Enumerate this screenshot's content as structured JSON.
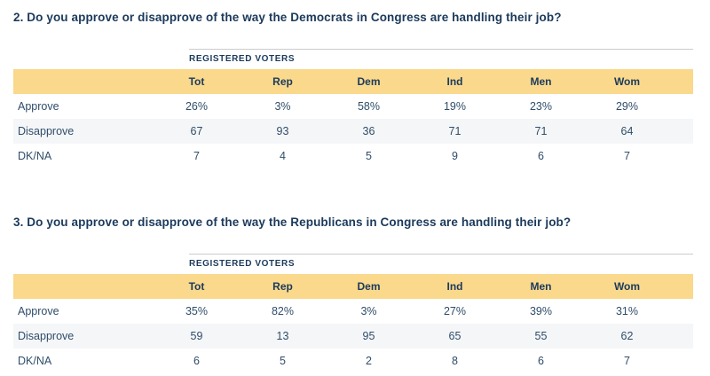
{
  "colors": {
    "header_band": "#fad88c",
    "stripe_row": "#f5f6f8",
    "title_text": "#1b3a5c",
    "body_text": "#2f4d6a",
    "rule_line": "#cbcbcb",
    "background": "#ffffff"
  },
  "questions": [
    {
      "title": "2. Do you approve or disapprove of the way the Democrats in Congress are handling their job?",
      "group_header": "REGISTERED VOTERS",
      "columns": [
        "Tot",
        "Rep",
        "Dem",
        "Ind",
        "Men",
        "Wom"
      ],
      "rows": [
        {
          "label": "Approve",
          "values": [
            "26%",
            "3%",
            "58%",
            "19%",
            "23%",
            "29%"
          ]
        },
        {
          "label": "Disapprove",
          "values": [
            "67",
            "93",
            "36",
            "71",
            "71",
            "64"
          ]
        },
        {
          "label": "DK/NA",
          "values": [
            "7",
            "4",
            "5",
            "9",
            "6",
            "7"
          ]
        }
      ]
    },
    {
      "title": "3. Do you approve or disapprove of the way the Republicans in Congress are handling their job?",
      "group_header": "REGISTERED VOTERS",
      "columns": [
        "Tot",
        "Rep",
        "Dem",
        "Ind",
        "Men",
        "Wom"
      ],
      "rows": [
        {
          "label": "Approve",
          "values": [
            "35%",
            "82%",
            "3%",
            "27%",
            "39%",
            "31%"
          ]
        },
        {
          "label": "Disapprove",
          "values": [
            "59",
            "13",
            "95",
            "65",
            "55",
            "62"
          ]
        },
        {
          "label": "DK/NA",
          "values": [
            "6",
            "5",
            "2",
            "8",
            "6",
            "7"
          ]
        }
      ]
    }
  ],
  "chart_data": [
    {
      "type": "table",
      "title": "2. Do you approve or disapprove of the way the Democrats in Congress are handling their job?",
      "group_header": "REGISTERED VOTERS",
      "columns": [
        "Tot",
        "Rep",
        "Dem",
        "Ind",
        "Men",
        "Wom"
      ],
      "rows": [
        [
          "Approve",
          "26%",
          "3%",
          "58%",
          "19%",
          "23%",
          "29%"
        ],
        [
          "Disapprove",
          "67",
          "93",
          "36",
          "71",
          "71",
          "64"
        ],
        [
          "DK/NA",
          "7",
          "4",
          "5",
          "9",
          "6",
          "7"
        ]
      ]
    },
    {
      "type": "table",
      "title": "3. Do you approve or disapprove of the way the Republicans in Congress are handling their job?",
      "group_header": "REGISTERED VOTERS",
      "columns": [
        "Tot",
        "Rep",
        "Dem",
        "Ind",
        "Men",
        "Wom"
      ],
      "rows": [
        [
          "Approve",
          "35%",
          "82%",
          "3%",
          "27%",
          "39%",
          "31%"
        ],
        [
          "Disapprove",
          "59",
          "13",
          "95",
          "65",
          "55",
          "62"
        ],
        [
          "DK/NA",
          "6",
          "5",
          "2",
          "8",
          "6",
          "7"
        ]
      ]
    }
  ]
}
